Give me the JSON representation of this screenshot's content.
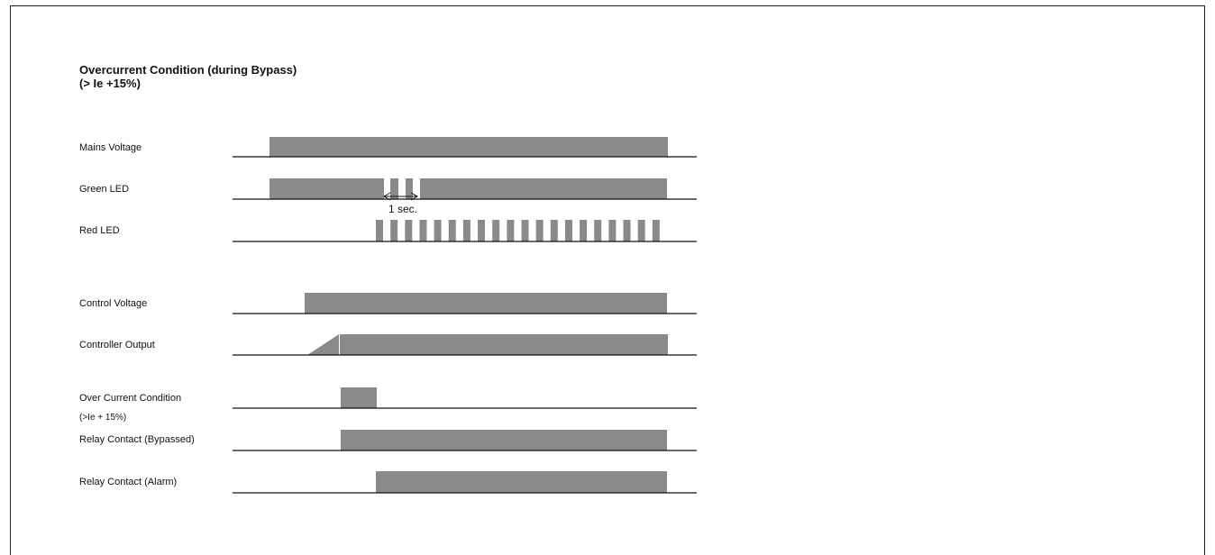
{
  "diagram": {
    "title": "Overcurrent Condition (during Bypass)",
    "subtitle": "(> Ie +15%)",
    "annotation": "1 sec.",
    "bar_color": "#8a8a8a",
    "line_color": "#111111",
    "signals": [
      {
        "id": "mains-voltage",
        "label": "Mains Voltage"
      },
      {
        "id": "green-led",
        "label": "Green LED"
      },
      {
        "id": "red-led",
        "label": "Red LED"
      },
      {
        "id": "control-voltage",
        "label": "Control Voltage"
      },
      {
        "id": "controller-output",
        "label": "Controller Output"
      },
      {
        "id": "over-current-condition",
        "label": "Over Current Condition",
        "sublabel": "(>Ie + 15%)"
      },
      {
        "id": "relay-bypassed",
        "label": "Relay Contact (Bypassed)"
      },
      {
        "id": "relay-alarm",
        "label": "Relay Contact (Alarm)"
      }
    ]
  }
}
